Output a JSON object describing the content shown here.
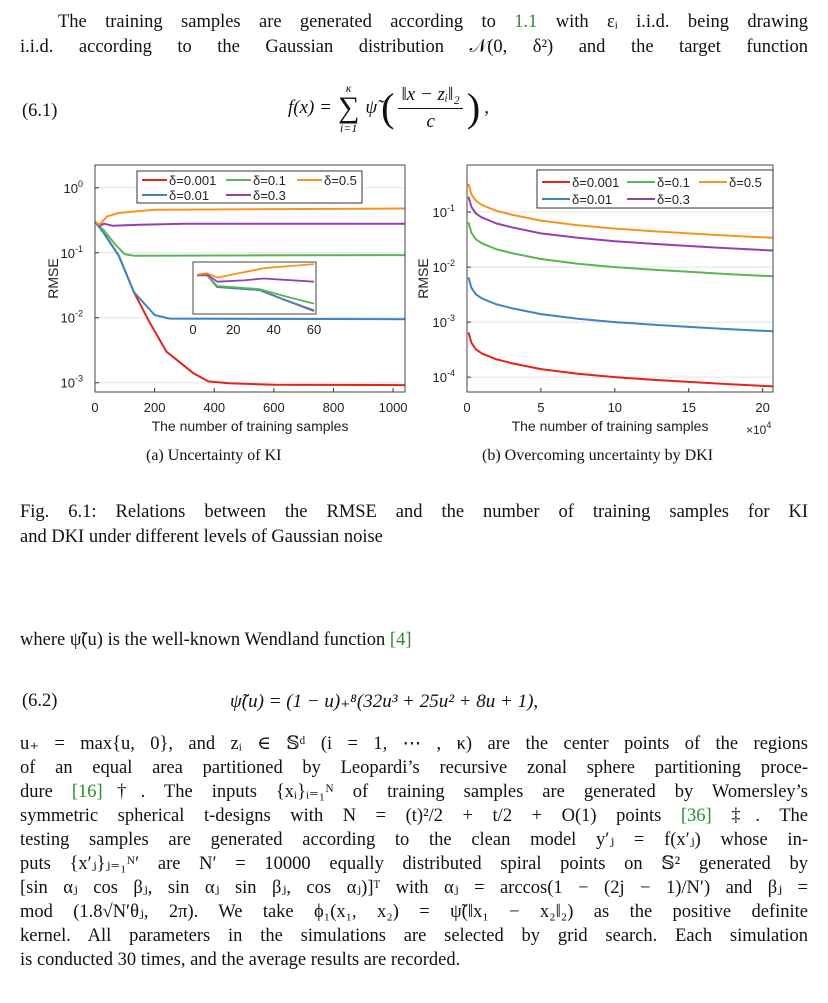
{
  "intro": {
    "lines": [
      [
        "The training samples are generated according to ",
        {
          "cite": "1.1"
        },
        " with εᵢ i.i.d. being drawing"
      ],
      [
        "i.i.d. according to the Gaussian distribution 𝒩(0, δ²) and the target function"
      ]
    ]
  },
  "eq61": {
    "label": "(6.1)",
    "lhs": "f(x) =",
    "sum_upper": "κ",
    "sum_symbol": "∑",
    "sum_lower": "i=1",
    "func": "ψ̃",
    "numerator": "‖x − zᵢ‖₂",
    "denominator": "c",
    "open": "(",
    "close": ")",
    "tail": ","
  },
  "chart_data": [
    {
      "type": "line",
      "caption": "(a) Uncertainty of KI",
      "xlabel": "The number of training samples",
      "ylabel": "RMSE",
      "yscale": "log",
      "xlim": [
        0,
        1040
      ],
      "ylim": [
        0.00072,
        2.24
      ],
      "xticks": [
        0,
        200,
        400,
        600,
        800,
        1000
      ],
      "yticks": [
        {
          "base": "10",
          "exp": "0",
          "value": 1
        },
        {
          "base": "10",
          "exp": "-1",
          "value": 0.1
        },
        {
          "base": "10",
          "exp": "-2",
          "value": 0.01
        },
        {
          "base": "10",
          "exp": "-3",
          "value": 0.001
        }
      ],
      "grid": "horizontal",
      "legend_position": "top",
      "series": [
        {
          "name": "δ=0.001",
          "color": "#e3241d",
          "x": [
            0,
            30,
            80,
            130,
            180,
            240,
            330,
            380,
            450,
            600,
            1040
          ],
          "y": [
            0.3,
            0.2,
            0.09,
            0.025,
            0.009,
            0.003,
            0.0014,
            0.00105,
            0.00098,
            0.00093,
            0.00092
          ]
        },
        {
          "name": "δ=0.01",
          "color": "#3f83c4",
          "x": [
            0,
            30,
            80,
            130,
            200,
            250,
            1040
          ],
          "y": [
            0.3,
            0.2,
            0.09,
            0.025,
            0.011,
            0.0097,
            0.0095
          ]
        },
        {
          "name": "δ=0.1",
          "color": "#5cb555",
          "x": [
            0,
            30,
            70,
            100,
            130,
            1040
          ],
          "y": [
            0.3,
            0.22,
            0.13,
            0.095,
            0.09,
            0.092
          ]
        },
        {
          "name": "δ=0.3",
          "color": "#9440b0",
          "x": [
            0,
            15,
            30,
            60,
            150,
            300,
            1040
          ],
          "y": [
            0.3,
            0.26,
            0.28,
            0.26,
            0.27,
            0.28,
            0.28
          ]
        },
        {
          "name": "δ=0.5",
          "color": "#f7931e",
          "x": [
            0,
            15,
            40,
            80,
            200,
            1040
          ],
          "y": [
            0.3,
            0.27,
            0.36,
            0.41,
            0.46,
            0.48
          ]
        }
      ],
      "legend_order": [
        "δ=0.001",
        "δ=0.1",
        "δ=0.5",
        "δ=0.01",
        "δ=0.3"
      ],
      "inset": {
        "xlim": [
          0,
          61
        ],
        "ylim": [
          0.0199,
          0.5
        ],
        "xticks": [
          0,
          20,
          40,
          60
        ],
        "series": [
          {
            "name": "δ=0.001",
            "color": "#e3241d",
            "x": [
              2,
              7,
              12,
              33,
              45,
              60
            ],
            "y": [
              0.22,
              0.22,
              0.106,
              0.088,
              0.049,
              0.024
            ]
          },
          {
            "name": "δ=0.01",
            "color": "#3f83c4",
            "x": [
              2,
              7,
              12,
              33,
              45,
              60
            ],
            "y": [
              0.22,
              0.22,
              0.106,
              0.088,
              0.049,
              0.025
            ]
          },
          {
            "name": "δ=0.1",
            "color": "#5cb555",
            "x": [
              2,
              7,
              12,
              33,
              45,
              60
            ],
            "y": [
              0.22,
              0.22,
              0.113,
              0.093,
              0.061,
              0.038
            ]
          },
          {
            "name": "δ=0.3",
            "color": "#9440b0",
            "x": [
              2,
              7,
              12,
              25,
              35,
              60
            ],
            "y": [
              0.22,
              0.23,
              0.147,
              0.16,
              0.18,
              0.147
            ]
          },
          {
            "name": "δ=0.5",
            "color": "#f7931e",
            "x": [
              2,
              7,
              12,
              35,
              60
            ],
            "y": [
              0.23,
              0.25,
              0.19,
              0.34,
              0.44
            ]
          }
        ]
      }
    },
    {
      "type": "line",
      "caption": "(b) Overcoming uncertainty by DKI",
      "xlabel": "The number of training samples",
      "xscale_label_base": "×10",
      "xscale_label_exp": "4",
      "ylabel": "RMSE",
      "yscale": "log",
      "xlim": [
        0,
        20.7
      ],
      "ylim": [
        5.37e-05,
        0.716
      ],
      "xticks": [
        0,
        5,
        10,
        15,
        20
      ],
      "yticks": [
        {
          "base": "10",
          "exp": "-1",
          "value": 0.1
        },
        {
          "base": "10",
          "exp": "-2",
          "value": 0.01
        },
        {
          "base": "10",
          "exp": "-3",
          "value": 0.001
        },
        {
          "base": "10",
          "exp": "-4",
          "value": 0.0001
        }
      ],
      "grid": "horizontal",
      "legend_position": "top-right",
      "series": [
        {
          "name": "δ=0.001",
          "color": "#e3241d",
          "x": [
            0.1,
            0.3,
            0.6,
            1,
            2,
            3,
            5,
            7.5,
            10,
            12.5,
            15,
            17.5,
            20.7
          ],
          "y": [
            0.00065,
            0.00042,
            0.00032,
            0.00027,
            0.00021,
            0.00018,
            0.00014,
            0.000115,
            0.0001,
            9e-05,
            8.2e-05,
            7.5e-05,
            6.8e-05
          ]
        },
        {
          "name": "δ=0.01",
          "color": "#3f83c4",
          "x": [
            0.1,
            0.3,
            0.6,
            1,
            2,
            3,
            5,
            7.5,
            10,
            12.5,
            15,
            17.5,
            20.7
          ],
          "y": [
            0.0065,
            0.0042,
            0.0032,
            0.0027,
            0.0021,
            0.0018,
            0.0014,
            0.00115,
            0.001,
            0.0009,
            0.00082,
            0.00075,
            0.00068
          ]
        },
        {
          "name": "δ=0.1",
          "color": "#5cb555",
          "x": [
            0.1,
            0.3,
            0.6,
            1,
            2,
            3,
            5,
            7.5,
            10,
            12.5,
            15,
            17.5,
            20.7
          ],
          "y": [
            0.065,
            0.042,
            0.032,
            0.027,
            0.021,
            0.018,
            0.014,
            0.0115,
            0.01,
            0.009,
            0.0082,
            0.0075,
            0.0068
          ]
        },
        {
          "name": "δ=0.3",
          "color": "#9440b0",
          "x": [
            0.1,
            0.3,
            0.6,
            1,
            2,
            3,
            5,
            7.5,
            10,
            12.5,
            15,
            17.5,
            20.7
          ],
          "y": [
            0.19,
            0.124,
            0.094,
            0.08,
            0.062,
            0.053,
            0.041,
            0.034,
            0.0295,
            0.0266,
            0.0242,
            0.0221,
            0.02
          ]
        },
        {
          "name": "δ=0.5",
          "color": "#f7931e",
          "x": [
            0.1,
            0.3,
            0.6,
            1,
            2,
            3,
            5,
            7.5,
            10,
            12.5,
            15,
            17.5,
            20.7
          ],
          "y": [
            0.325,
            0.21,
            0.16,
            0.135,
            0.105,
            0.09,
            0.07,
            0.0575,
            0.05,
            0.045,
            0.041,
            0.0375,
            0.034
          ]
        }
      ],
      "legend_order": [
        "δ=0.001",
        "δ=0.1",
        "δ=0.5",
        "δ=0.01",
        "δ=0.3"
      ]
    }
  ],
  "figure_caption": {
    "lines": [
      [
        "Fig. 6.1: Relations between the RMSE and the number of training samples for KI"
      ],
      [
        "and DKI under different levels of Gaussian noise"
      ]
    ]
  },
  "where": {
    "lines": [
      [
        "where ψ̃(u) is the well-known Wendland function ",
        {
          "cite": "[4]"
        }
      ]
    ]
  },
  "eq62": {
    "label": "(6.2)",
    "formula": "ψ̃(u) = (1 − u)₊⁸(32u³ + 25u² + 8u + 1),"
  },
  "body": {
    "lines": [
      [
        "u₊ = max{u, 0}, and zᵢ ∈ 𝕊ᵈ (i = 1, ⋯ , κ) are the center points of the regions"
      ],
      [
        "of an equal area partitioned by Leopardi’s recursive zonal sphere partitioning proce-"
      ],
      [
        "dure ",
        {
          "cite": "[16]"
        },
        "†.  The inputs {xᵢ}ᵢ₌₁ᴺ of training samples are generated by Womersley’s"
      ],
      [
        "symmetric spherical t-designs with N = (t)²/2 + t/2 + O(1) points ",
        {
          "cite": "[36]"
        },
        " ‡.  The"
      ],
      [
        "testing samples are generated according to the clean model y′ⱼ = f(x′ⱼ) whose in-"
      ],
      [
        "puts {x′ⱼ}ⱼ₌₁ᴺ′ are N′ = 10000 equally distributed spiral points on 𝕊² generated by"
      ],
      [
        "[sin αⱼ cos βⱼ, sin αⱼ sin βⱼ, cos αⱼ)]ᵀ  with  αⱼ = arccos(1 − (2j − 1)/N′)  and  βⱼ ="
      ],
      [
        "mod (1.8√N′θⱼ, 2π).  We take ϕ₁(x₁, x₂) = ψ̃(‖x₁ − x₂‖₂) as the positive definite"
      ],
      [
        "kernel. All parameters in the simulations are selected by grid search. Each simulation"
      ],
      [
        "is conducted 30 times, and the average results are recorded."
      ]
    ]
  }
}
